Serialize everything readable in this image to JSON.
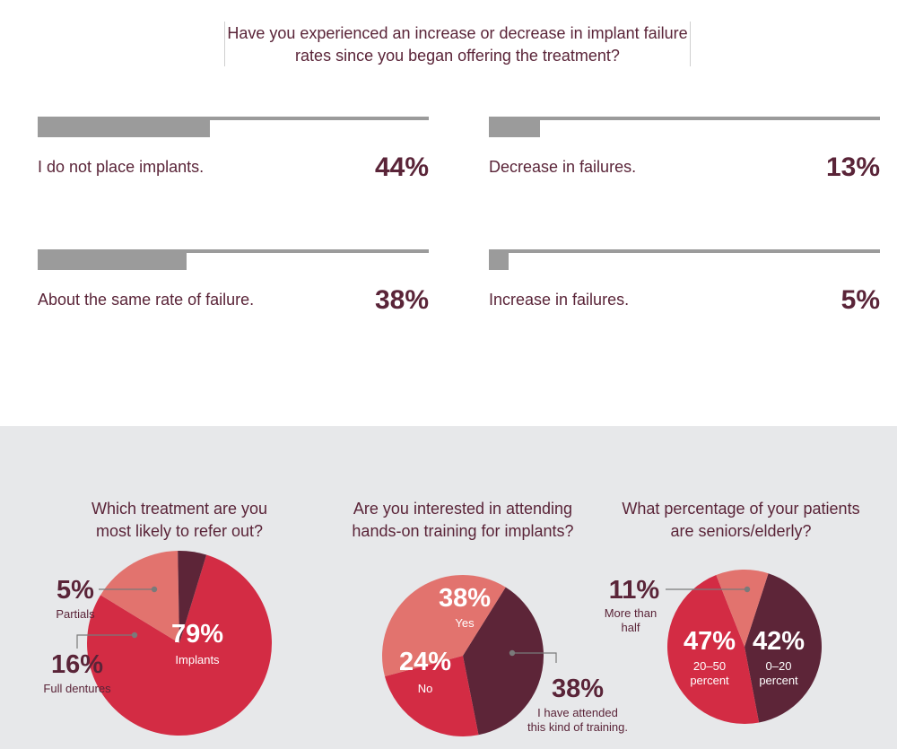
{
  "colors": {
    "maroon": "#5d2538",
    "red": "#d32c44",
    "salmon": "#e2736e",
    "bar_gray": "#9b9b9b",
    "text": "#5a2438",
    "panel_bg": "#e7e8ea"
  },
  "chart_data": [
    {
      "type": "bar",
      "title": "Have you experienced an increase or decrease in implant failure rates since you began offering the treatment?",
      "orientation": "horizontal",
      "categories": [
        "I do not place implants.",
        "Decrease in failures.",
        "About the same rate of failure.",
        "Increase in failures."
      ],
      "values": [
        44,
        13,
        38,
        5
      ],
      "value_labels": [
        "44%",
        "13%",
        "38%",
        "5%"
      ],
      "xlim": [
        0,
        100
      ]
    },
    {
      "type": "pie",
      "title": "Which treatment are you most likely to refer out?",
      "slices": [
        {
          "label": "Implants",
          "value": 79,
          "pct_label": "79%",
          "color": "#d32c44"
        },
        {
          "label": "Full dentures",
          "value": 16,
          "pct_label": "16%",
          "color": "#e2736e"
        },
        {
          "label": "Partials",
          "value": 5,
          "pct_label": "5%",
          "color": "#5d2538"
        }
      ]
    },
    {
      "type": "pie",
      "title": "Are you interested in attending hands-on training for implants?",
      "slices": [
        {
          "label": "I have attended this kind of training.",
          "value": 38,
          "pct_label": "38%",
          "color": "#5d2538"
        },
        {
          "label": "No",
          "value": 24,
          "pct_label": "24%",
          "color": "#d32c44"
        },
        {
          "label": "Yes",
          "value": 38,
          "pct_label": "38%",
          "color": "#e2736e"
        }
      ]
    },
    {
      "type": "pie",
      "title": "What percentage of your patients are seniors/elderly?",
      "slices": [
        {
          "label": "0–20 percent",
          "value": 42,
          "pct_label": "42%",
          "color": "#5d2538"
        },
        {
          "label": "20–50 percent",
          "value": 47,
          "pct_label": "47%",
          "color": "#d32c44"
        },
        {
          "label": "More than half",
          "value": 11,
          "pct_label": "11%",
          "color": "#e2736e"
        }
      ]
    }
  ],
  "pie_titles": [
    [
      "Which treatment are you",
      "most likely to refer out?"
    ],
    [
      "Are you interested in attending",
      "hands-on training for implants?"
    ],
    [
      "What percentage of your patients",
      "are seniors/elderly?"
    ]
  ],
  "pie_label_lines": [
    [
      [
        "Implants"
      ],
      [
        "Full dentures"
      ],
      [
        "Partials"
      ]
    ],
    [
      [
        "I have attended",
        "this kind of training."
      ],
      [
        "No"
      ],
      [
        "Yes"
      ]
    ],
    [
      [
        "0–20",
        "percent"
      ],
      [
        "20–50",
        "percent"
      ],
      [
        "More than",
        "half"
      ]
    ]
  ]
}
